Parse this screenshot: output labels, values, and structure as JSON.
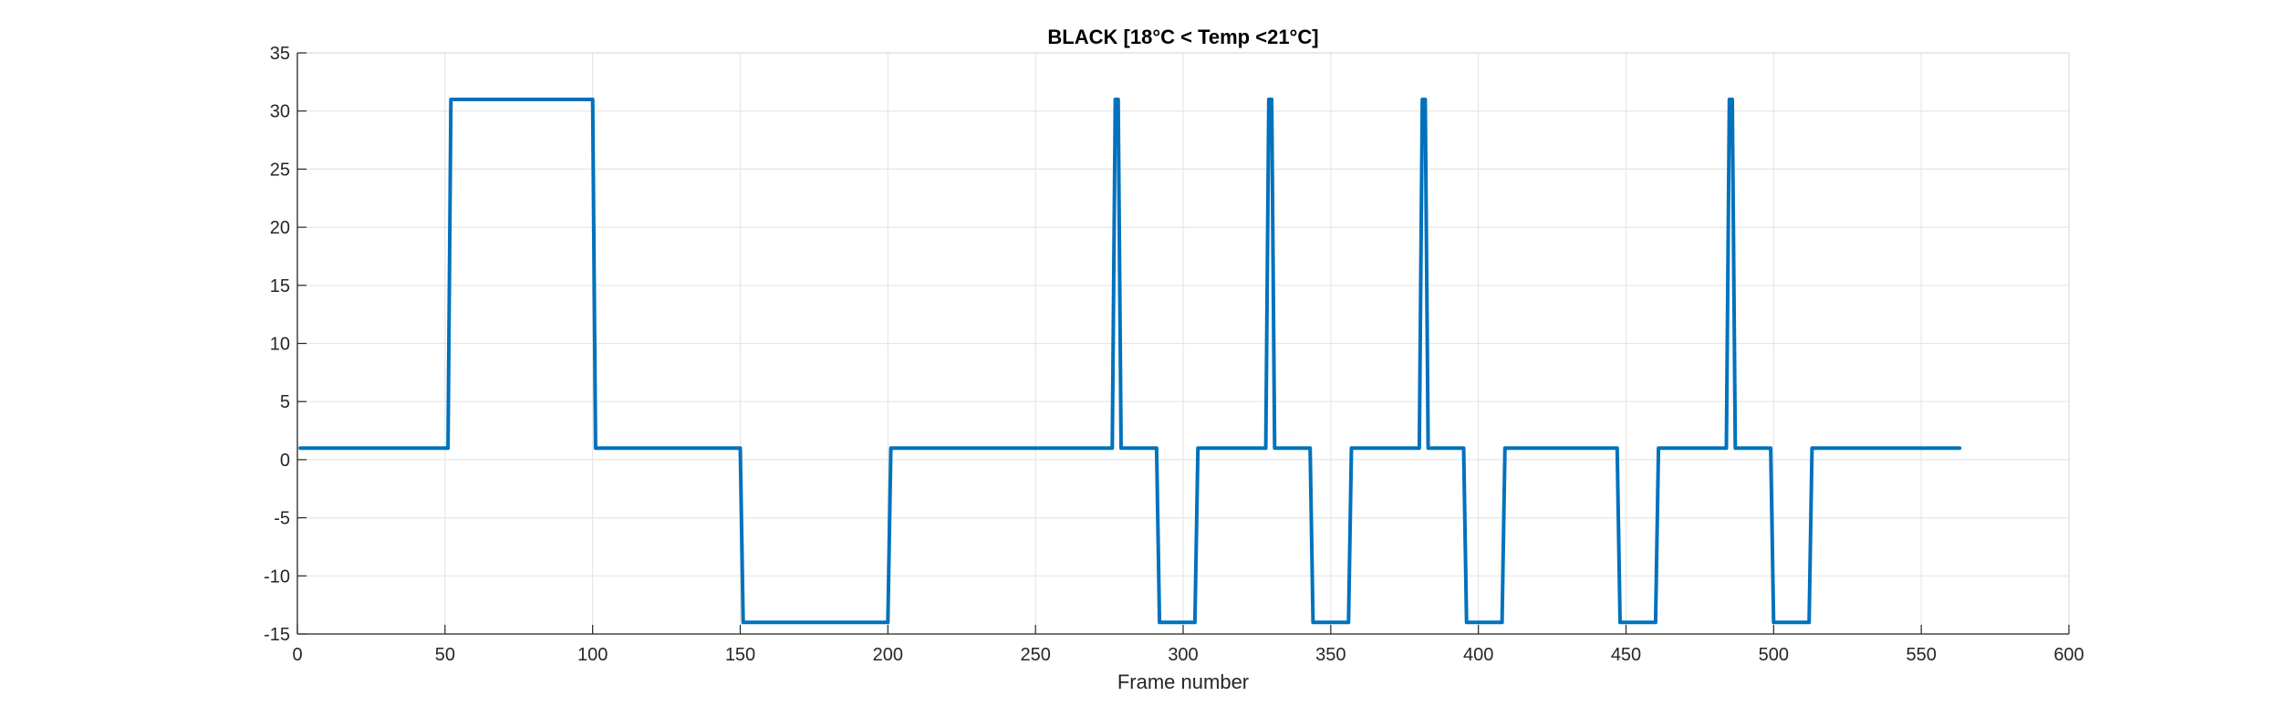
{
  "chart_data": {
    "type": "line",
    "title": "BLACK [18°C < Temp <21°C]",
    "xlabel": "Frame number",
    "ylabel": "",
    "xlim": [
      0,
      600
    ],
    "ylim": [
      -15,
      35
    ],
    "xticks": [
      0,
      50,
      100,
      150,
      200,
      250,
      300,
      350,
      400,
      450,
      500,
      550,
      600
    ],
    "yticks": [
      35,
      30,
      25,
      20,
      15,
      10,
      5,
      0,
      -5,
      -10,
      -15
    ],
    "grid": true,
    "legend": "none",
    "series": [
      {
        "color": "#0072bd",
        "x": [
          1,
          51,
          52,
          100,
          101,
          150,
          151,
          200,
          201,
          276,
          277,
          278,
          279,
          291,
          292,
          304,
          305,
          328,
          329,
          330,
          331,
          343,
          344,
          356,
          357,
          380,
          381,
          382,
          383,
          395,
          396,
          408,
          409,
          447,
          448,
          460,
          461,
          484,
          485,
          486,
          487,
          499,
          500,
          512,
          513,
          563
        ],
        "y": [
          1,
          1,
          31,
          31,
          1,
          1,
          -14,
          -14,
          1,
          1,
          31,
          31,
          1,
          1,
          -14,
          -14,
          1,
          1,
          31,
          31,
          1,
          1,
          -14,
          -14,
          1,
          1,
          31,
          31,
          1,
          1,
          -14,
          -14,
          1,
          1,
          -14,
          -14,
          1,
          1,
          31,
          31,
          1,
          1,
          -14,
          -14,
          1,
          1
        ]
      }
    ]
  }
}
